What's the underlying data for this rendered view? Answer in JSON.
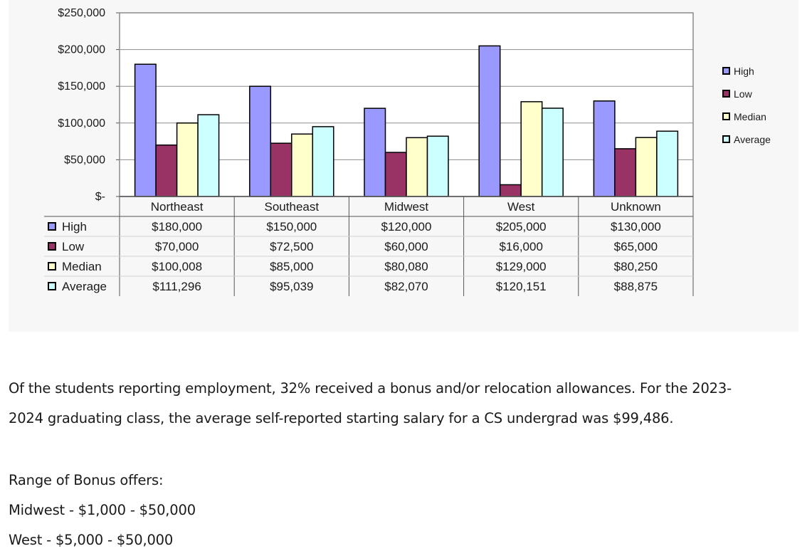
{
  "chart_data": {
    "type": "bar",
    "categories": [
      "Northeast",
      "Southeast",
      "Midwest",
      "West",
      "Unknown"
    ],
    "series": [
      {
        "name": "High",
        "values": [
          180000,
          150000,
          120000,
          205000,
          130000
        ],
        "labels": [
          "$180,000",
          "$150,000",
          "$120,000",
          "$205,000",
          "$130,000"
        ],
        "color": "#9999ff"
      },
      {
        "name": "Low",
        "values": [
          70000,
          72500,
          60000,
          16000,
          65000
        ],
        "labels": [
          "$70,000",
          "$72,500",
          "$60,000",
          "$16,000",
          "$65,000"
        ],
        "color": "#993366"
      },
      {
        "name": "Median",
        "values": [
          100008,
          85000,
          80080,
          129000,
          80250
        ],
        "labels": [
          "$100,008",
          "$85,000",
          "$80,080",
          "$129,000",
          "$80,250"
        ],
        "color": "#ffffcc"
      },
      {
        "name": "Average",
        "values": [
          111296,
          95039,
          82070,
          120151,
          88875
        ],
        "labels": [
          "$111,296",
          "$95,039",
          "$82,070",
          "$120,151",
          "$88,875"
        ],
        "color": "#ccffff"
      }
    ],
    "y_ticks": [
      {
        "value": 250000,
        "label": "$250,000"
      },
      {
        "value": 200000,
        "label": "$200,000"
      },
      {
        "value": 150000,
        "label": "$150,000"
      },
      {
        "value": 100000,
        "label": "$100,000"
      },
      {
        "value": 50000,
        "label": "$50,000"
      },
      {
        "value": 0,
        "label": "$-"
      }
    ],
    "ylim": [
      0,
      250000
    ],
    "grid": true,
    "legend_position": "right",
    "data_table": true
  },
  "text": {
    "para1_line1": "Of the students reporting employment, 32% received a bonus and/or relocation allowances. For the 2023-",
    "para1_line2": "2024 graduating class, the average self-reported starting salary for a CS undergrad was $99,486.",
    "range_heading": "Range of Bonus offers:",
    "range_midwest": "Midwest - $1,000 - $50,000",
    "range_west": "West - $5,000 - $50,000"
  }
}
